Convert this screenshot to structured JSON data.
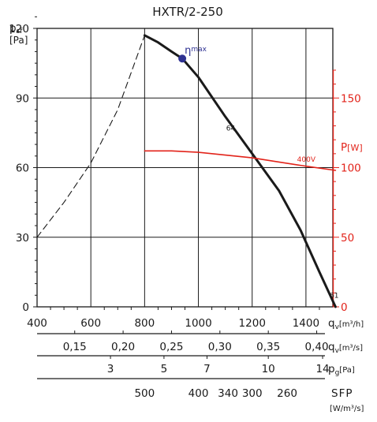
{
  "chart_data": {
    "type": "line",
    "title": "HXTR/2-250",
    "ylabel": {
      "main": "p",
      "sub": "sf",
      "unit": "[Pa]"
    },
    "y_ticks": [
      "0",
      "30",
      "60",
      "90",
      "120"
    ],
    "ylim": [
      0,
      120
    ],
    "y2label": {
      "main": "P",
      "unit": "[W]"
    },
    "y2_ticks": [
      "0",
      "50",
      "100",
      "150"
    ],
    "y2lim": [
      0,
      200
    ],
    "xlim": [
      400,
      1500
    ],
    "x_axes": [
      {
        "label_main": "q",
        "label_sub": "v",
        "label_unit": "[m³/h]",
        "ticks": [
          {
            "v": 400,
            "t": "400"
          },
          {
            "v": 600,
            "t": "600"
          },
          {
            "v": 800,
            "t": "800"
          },
          {
            "v": 1000,
            "t": "1000"
          },
          {
            "v": 1200,
            "t": "1200"
          },
          {
            "v": 1400,
            "t": "1400"
          }
        ]
      },
      {
        "label_main": "q",
        "label_sub": "v",
        "label_unit": "[m³/s]",
        "ticks": [
          {
            "v": 540,
            "t": "0,15"
          },
          {
            "v": 720,
            "t": "0,20"
          },
          {
            "v": 900,
            "t": "0,25"
          },
          {
            "v": 1080,
            "t": "0,30"
          },
          {
            "v": 1260,
            "t": "0,35"
          },
          {
            "v": 1440,
            "t": "0,40"
          }
        ]
      },
      {
        "label_main": "p",
        "label_sub": "g",
        "label_unit": "[Pa]",
        "ticks": [
          {
            "v": 673,
            "t": "3"
          },
          {
            "v": 872,
            "t": "5"
          },
          {
            "v": 1032,
            "t": "7"
          },
          {
            "v": 1260,
            "t": "10"
          },
          {
            "v": 1462,
            "t": "14"
          }
        ]
      },
      {
        "label_main": "SFP",
        "label_unit": "[W/m³/s]",
        "ticks": [
          {
            "v": 800,
            "t": "500"
          },
          {
            "v": 1000,
            "t": "400"
          },
          {
            "v": 1110,
            "t": "340"
          },
          {
            "v": 1200,
            "t": "300"
          },
          {
            "v": 1330,
            "t": "260"
          }
        ]
      }
    ],
    "grid": true,
    "series": [
      {
        "name": "",
        "role": "pressure-dashed",
        "color": "#1a1a1a",
        "x": [
          400,
          500,
          600,
          700,
          800
        ],
        "y": [
          30,
          45,
          62,
          85,
          117
        ]
      },
      {
        "name": "",
        "role": "pressure",
        "color": "#1a1a1a",
        "x": [
          800,
          850,
          900,
          940,
          1000,
          1100,
          1200,
          1300,
          1380,
          1450,
          1510
        ],
        "y": [
          117,
          114,
          110,
          107,
          99,
          82,
          66,
          50,
          33,
          15,
          0
        ]
      },
      {
        "name": "",
        "role": "power",
        "color": "#e2231a",
        "x": [
          800,
          900,
          1000,
          1100,
          1200,
          1300,
          1400,
          1510
        ],
        "y": [
          112,
          112,
          111,
          109,
          107,
          104,
          101,
          98
        ]
      }
    ],
    "annotations": [
      {
        "kind": "eta-max",
        "glyph": "η",
        "sub": "max",
        "x": 940,
        "y": 107,
        "color": "#2e3192"
      },
      {
        "kind": "label",
        "text": "64",
        "x": 1120,
        "y": 77
      },
      {
        "kind": "label",
        "text": "61",
        "x": 1505,
        "y": 5
      },
      {
        "kind": "label-red",
        "text": "400V",
        "x": 1410,
        "y": 103
      }
    ]
  }
}
